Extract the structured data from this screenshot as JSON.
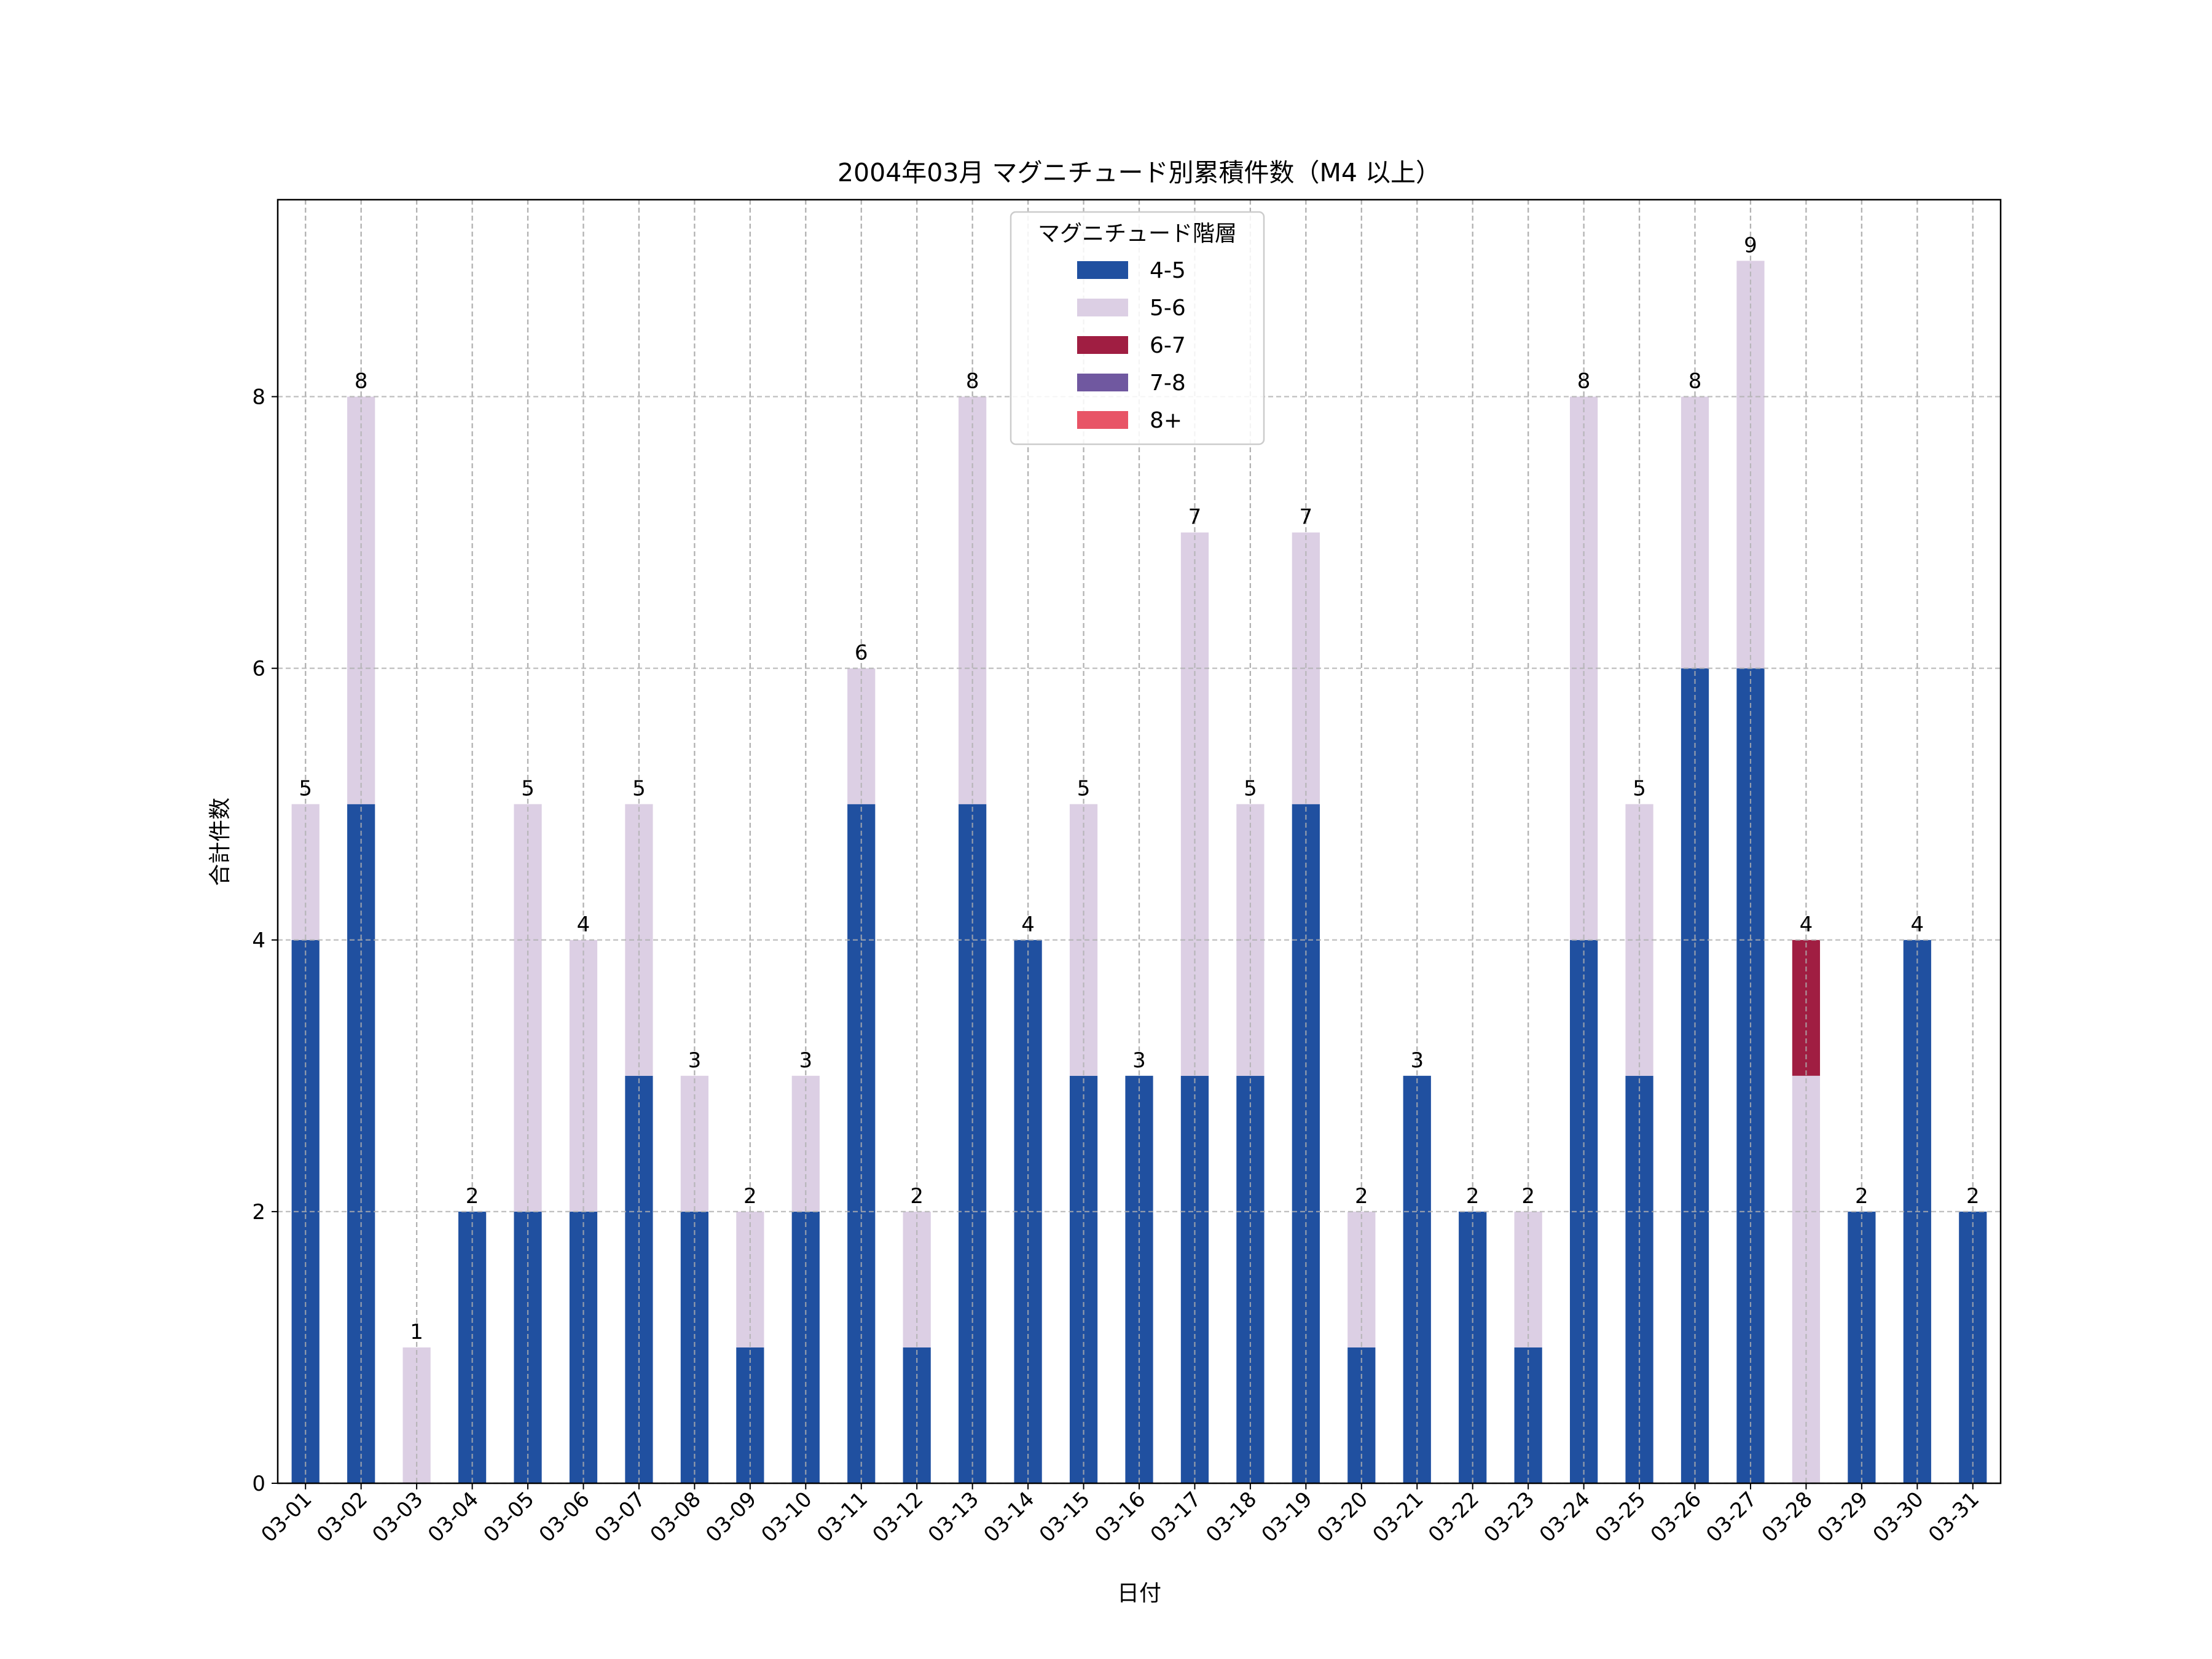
{
  "chart_data": {
    "type": "bar",
    "stacked": true,
    "title": "2004年03月 マグニチュード別累積件数（M4 以上）",
    "xlabel": "日付",
    "ylabel": "合計件数",
    "ylim": [
      0,
      9.45
    ],
    "yticks": [
      0,
      2,
      4,
      6,
      8
    ],
    "grid": true,
    "legend": {
      "title": "マグニチュード階層",
      "placement": "top-center"
    },
    "categories": [
      "03-01",
      "03-02",
      "03-03",
      "03-04",
      "03-05",
      "03-06",
      "03-07",
      "03-08",
      "03-09",
      "03-10",
      "03-11",
      "03-12",
      "03-13",
      "03-14",
      "03-15",
      "03-16",
      "03-17",
      "03-18",
      "03-19",
      "03-20",
      "03-21",
      "03-22",
      "03-23",
      "03-24",
      "03-25",
      "03-26",
      "03-27",
      "03-28",
      "03-29",
      "03-30",
      "03-31"
    ],
    "series": [
      {
        "name": "4-5",
        "color": "#2050a0",
        "values": [
          4,
          5,
          0,
          2,
          2,
          2,
          3,
          2,
          1,
          2,
          5,
          1,
          5,
          4,
          3,
          3,
          3,
          3,
          5,
          1,
          3,
          2,
          1,
          4,
          3,
          6,
          6,
          0,
          2,
          4,
          2
        ]
      },
      {
        "name": "5-6",
        "color": "#dccfe4",
        "values": [
          1,
          3,
          1,
          0,
          3,
          2,
          2,
          1,
          1,
          1,
          1,
          1,
          3,
          0,
          2,
          0,
          4,
          2,
          2,
          1,
          0,
          0,
          1,
          4,
          2,
          2,
          3,
          3,
          0,
          0,
          0
        ]
      },
      {
        "name": "6-7",
        "color": "#a01e42",
        "values": [
          0,
          0,
          0,
          0,
          0,
          0,
          0,
          0,
          0,
          0,
          0,
          0,
          0,
          0,
          0,
          0,
          0,
          0,
          0,
          0,
          0,
          0,
          0,
          0,
          0,
          0,
          0,
          1,
          0,
          0,
          0
        ]
      },
      {
        "name": "7-8",
        "color": "#7058a0",
        "values": [
          0,
          0,
          0,
          0,
          0,
          0,
          0,
          0,
          0,
          0,
          0,
          0,
          0,
          0,
          0,
          0,
          0,
          0,
          0,
          0,
          0,
          0,
          0,
          0,
          0,
          0,
          0,
          0,
          0,
          0,
          0
        ]
      },
      {
        "name": "8+",
        "color": "#e85466",
        "values": [
          0,
          0,
          0,
          0,
          0,
          0,
          0,
          0,
          0,
          0,
          0,
          0,
          0,
          0,
          0,
          0,
          0,
          0,
          0,
          0,
          0,
          0,
          0,
          0,
          0,
          0,
          0,
          0,
          0,
          0,
          0
        ]
      }
    ],
    "totals": [
      5,
      8,
      1,
      2,
      5,
      4,
      5,
      3,
      2,
      3,
      6,
      2,
      8,
      4,
      5,
      3,
      7,
      5,
      7,
      2,
      3,
      2,
      2,
      8,
      5,
      8,
      9,
      4,
      2,
      4,
      2
    ]
  }
}
